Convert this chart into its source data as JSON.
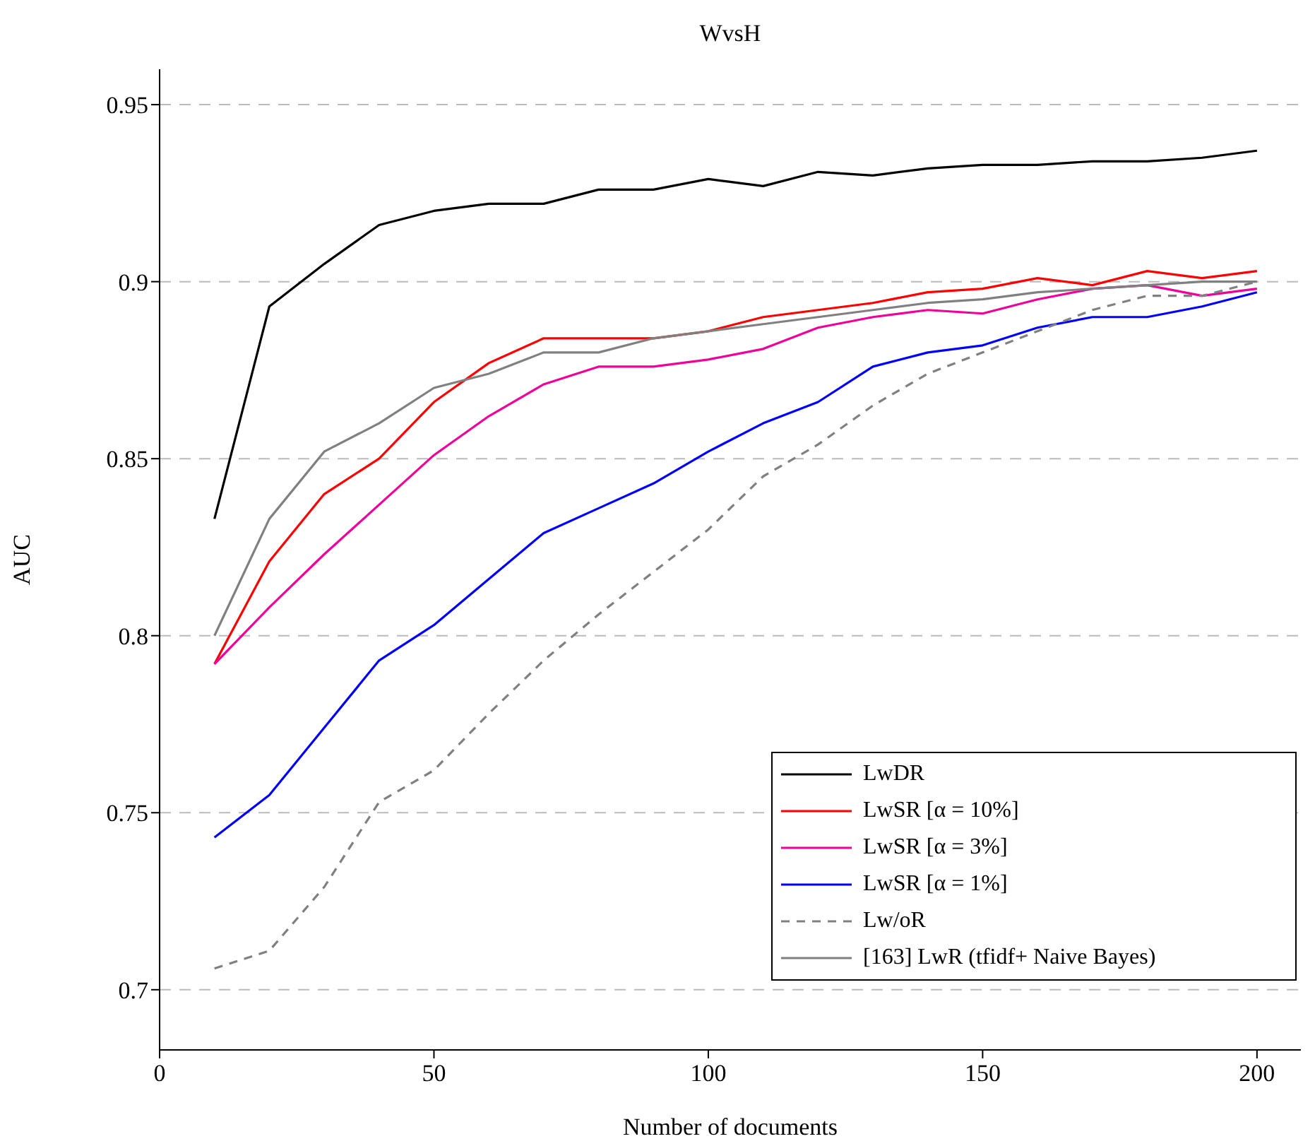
{
  "chart_data": {
    "type": "line",
    "title": "WvsH",
    "xlabel": "Number of documents",
    "ylabel": "AUC",
    "x": [
      10,
      20,
      30,
      40,
      50,
      60,
      70,
      80,
      90,
      100,
      110,
      120,
      130,
      140,
      150,
      160,
      170,
      180,
      190,
      200
    ],
    "series": [
      {
        "name": "LwDR",
        "color": "#000000",
        "values": [
          0.833,
          0.893,
          0.905,
          0.916,
          0.92,
          0.922,
          0.922,
          0.926,
          0.926,
          0.929,
          0.927,
          0.931,
          0.93,
          0.932,
          0.933,
          0.933,
          0.934,
          0.934,
          0.935,
          0.937
        ]
      },
      {
        "name": "LwSR [α = 10%]",
        "color": "#ff0000",
        "values": [
          0.792,
          0.821,
          0.84,
          0.85,
          0.866,
          0.877,
          0.884,
          0.884,
          0.884,
          0.886,
          0.89,
          0.892,
          0.894,
          0.897,
          0.898,
          0.901,
          0.899,
          0.903,
          0.901,
          0.903
        ]
      },
      {
        "name": "LwSR [α = 3%]",
        "color": "#ee0099",
        "values": [
          0.792,
          0.808,
          0.823,
          0.837,
          0.851,
          0.862,
          0.871,
          0.876,
          0.876,
          0.878,
          0.881,
          0.887,
          0.89,
          0.892,
          0.891,
          0.895,
          0.898,
          0.899,
          0.896,
          0.898
        ]
      },
      {
        "name": "LwSR [α = 1%]",
        "color": "#0000ff",
        "values": [
          0.743,
          0.755,
          0.774,
          0.793,
          0.803,
          0.816,
          0.829,
          0.836,
          0.843,
          0.852,
          0.86,
          0.866,
          0.876,
          0.88,
          0.882,
          0.887,
          0.89,
          0.89,
          0.893,
          0.897
        ]
      },
      {
        "name": "Lw/oR",
        "color": "#808080",
        "line_style": "dashed",
        "values": [
          0.706,
          0.711,
          0.729,
          0.753,
          0.762,
          0.778,
          0.793,
          0.806,
          0.818,
          0.83,
          0.845,
          0.854,
          0.865,
          0.874,
          0.88,
          0.886,
          0.892,
          0.896,
          0.896,
          0.9
        ]
      },
      {
        "name": "[163] LwR (tfidf+ Naive Bayes)",
        "color": "#808080",
        "values": [
          0.8,
          0.833,
          0.852,
          0.86,
          0.87,
          0.874,
          0.88,
          0.88,
          0.884,
          0.886,
          0.888,
          0.89,
          0.892,
          0.894,
          0.895,
          0.897,
          0.898,
          0.899,
          0.9,
          0.9
        ]
      }
    ],
    "xlim": [
      0,
      208
    ],
    "xticks": [
      0,
      50,
      100,
      150,
      200
    ],
    "ylim": [
      0.683,
      0.96
    ],
    "yticks": [
      0.7,
      0.75,
      0.8,
      0.85,
      0.9,
      0.95
    ],
    "grid": "y",
    "legend": "bottom right",
    "marker": "none",
    "line_style": "solid"
  }
}
